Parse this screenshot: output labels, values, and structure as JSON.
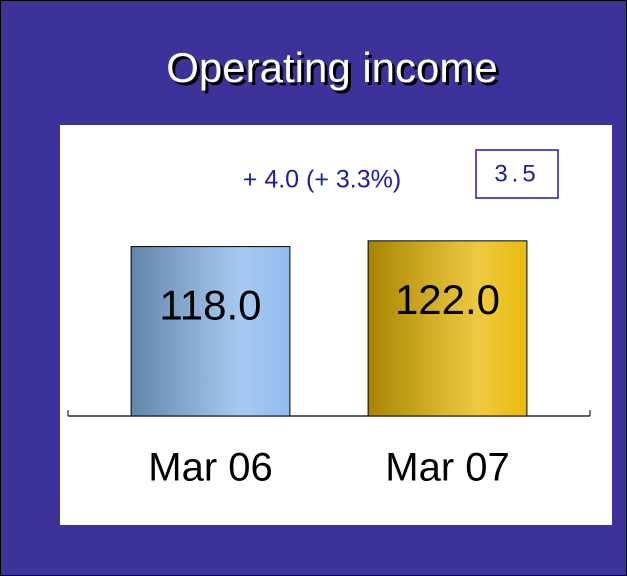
{
  "chart_data": {
    "type": "bar",
    "title": "Operating income",
    "categories": [
      "Mar 06",
      "Mar 07"
    ],
    "values": [
      118,
      122
    ],
    "value_labels": [
      "118.0",
      "122.0"
    ],
    "colors": [
      "#8ab8ec",
      "#e8b800"
    ],
    "ylim": [
      0,
      140
    ],
    "annotation": "+ 4.0 (+ 3.3%)",
    "box_label": "3.5"
  }
}
